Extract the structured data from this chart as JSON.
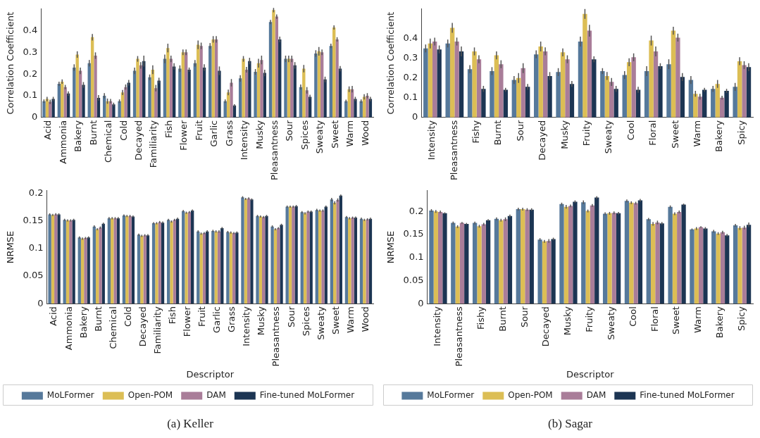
{
  "chart_data": [
    {
      "type": "bar",
      "ylabel": "Correlation Coefficient",
      "ylim": [
        0,
        0.5
      ],
      "yticks": [
        0,
        0.1,
        0.2,
        0.3,
        0.4
      ],
      "grid": false,
      "legend": false,
      "categories": [
        "Acid",
        "Ammonia",
        "Bakery",
        "Burnt",
        "Chemical",
        "Cold",
        "Decayed",
        "Familiarity",
        "Fish",
        "Flower",
        "Fruit",
        "Garlic",
        "Grass",
        "Intensity",
        "Musky",
        "Pleasantness",
        "Sour",
        "Spices",
        "Sweaty",
        "Sweet",
        "Warm",
        "Wood"
      ],
      "series": [
        {
          "color": "#56799b",
          "values": [
            0.075,
            0.155,
            0.23,
            0.25,
            0.1,
            0.075,
            0.215,
            0.185,
            0.27,
            0.225,
            0.25,
            0.33,
            0.075,
            0.18,
            0.21,
            0.44,
            0.27,
            0.14,
            0.295,
            0.33,
            0.075,
            0.075
          ],
          "errors": [
            0.008,
            0.01,
            0.015,
            0.015,
            0.012,
            0.008,
            0.015,
            0.013,
            0.02,
            0.015,
            0.015,
            0.013,
            0.008,
            0.015,
            0.013,
            0.01,
            0.015,
            0.012,
            0.015,
            0.01,
            0.007,
            0.008
          ]
        },
        {
          "color": "#dcbe55",
          "values": [
            0.085,
            0.165,
            0.29,
            0.37,
            0.075,
            0.115,
            0.27,
            0.22,
            0.32,
            0.3,
            0.335,
            0.36,
            0.115,
            0.27,
            0.25,
            0.495,
            0.27,
            0.225,
            0.305,
            0.415,
            0.13,
            0.095
          ],
          "errors": [
            0.01,
            0.01,
            0.015,
            0.015,
            0.012,
            0.012,
            0.013,
            0.02,
            0.02,
            0.013,
            0.02,
            0.015,
            0.013,
            0.013,
            0.02,
            0.01,
            0.015,
            0.017,
            0.02,
            0.01,
            0.013,
            0.012
          ]
        },
        {
          "color": "#a97d99",
          "values": [
            0.072,
            0.14,
            0.215,
            0.285,
            0.075,
            0.14,
            0.24,
            0.135,
            0.27,
            0.3,
            0.33,
            0.36,
            0.16,
            0.22,
            0.265,
            0.465,
            0.27,
            0.125,
            0.3,
            0.36,
            0.13,
            0.1
          ],
          "errors": [
            0.01,
            0.01,
            0.015,
            0.015,
            0.01,
            0.012,
            0.015,
            0.015,
            0.015,
            0.013,
            0.015,
            0.015,
            0.017,
            0.013,
            0.02,
            0.01,
            0.015,
            0.015,
            0.013,
            0.01,
            0.015,
            0.012
          ]
        },
        {
          "color": "#1c3553",
          "values": [
            0.085,
            0.11,
            0.15,
            0.09,
            0.06,
            0.16,
            0.26,
            0.17,
            0.235,
            0.22,
            0.23,
            0.215,
            0.055,
            0.26,
            0.205,
            0.36,
            0.24,
            0.095,
            0.175,
            0.225,
            0.085,
            0.085
          ],
          "errors": [
            0.01,
            0.01,
            0.013,
            0.013,
            0.008,
            0.013,
            0.025,
            0.013,
            0.015,
            0.01,
            0.015,
            0.02,
            0.006,
            0.015,
            0.015,
            0.013,
            0.015,
            0.01,
            0.013,
            0.012,
            0.01,
            0.01
          ]
        }
      ]
    },
    {
      "type": "bar",
      "ylabel": "Correlation Coefficient",
      "ylim": [
        0,
        0.55
      ],
      "yticks": [
        0,
        0.1,
        0.2,
        0.3,
        0.4
      ],
      "grid": false,
      "legend": false,
      "categories": [
        "Intensity",
        "Pleasantness",
        "Fishy",
        "Burnt",
        "Sour",
        "Decayed",
        "Musky",
        "Fruity",
        "Sweaty",
        "Cool",
        "Floral",
        "Sweet",
        "Warm",
        "Bakery",
        "Spicy"
      ],
      "series": [
        {
          "color": "#56799b",
          "values": [
            0.35,
            0.375,
            0.245,
            0.235,
            0.19,
            0.32,
            0.23,
            0.385,
            0.235,
            0.215,
            0.235,
            0.27,
            0.19,
            0.145,
            0.155
          ],
          "errors": [
            0.02,
            0.02,
            0.02,
            0.02,
            0.02,
            0.02,
            0.02,
            0.025,
            0.015,
            0.02,
            0.025,
            0.025,
            0.02,
            0.015,
            0.02
          ]
        },
        {
          "color": "#dcbe55",
          "values": [
            0.375,
            0.455,
            0.335,
            0.315,
            0.2,
            0.36,
            0.33,
            0.525,
            0.21,
            0.28,
            0.39,
            0.44,
            0.12,
            0.17,
            0.285
          ],
          "errors": [
            0.025,
            0.025,
            0.02,
            0.02,
            0.025,
            0.025,
            0.02,
            0.025,
            0.02,
            0.02,
            0.025,
            0.02,
            0.015,
            0.02,
            0.02
          ]
        },
        {
          "color": "#a97d99",
          "values": [
            0.385,
            0.385,
            0.295,
            0.27,
            0.25,
            0.335,
            0.295,
            0.44,
            0.18,
            0.305,
            0.335,
            0.405,
            0.105,
            0.1,
            0.265
          ],
          "errors": [
            0.02,
            0.02,
            0.02,
            0.02,
            0.025,
            0.02,
            0.02,
            0.03,
            0.02,
            0.02,
            0.025,
            0.02,
            0.015,
            0.01,
            0.02
          ]
        },
        {
          "color": "#1c3553",
          "values": [
            0.345,
            0.335,
            0.145,
            0.14,
            0.155,
            0.21,
            0.17,
            0.295,
            0.145,
            0.14,
            0.26,
            0.205,
            0.14,
            0.135,
            0.255
          ],
          "errors": [
            0.02,
            0.025,
            0.015,
            0.01,
            0.015,
            0.02,
            0.015,
            0.015,
            0.015,
            0.015,
            0.015,
            0.02,
            0.01,
            0.01,
            0.02
          ]
        }
      ]
    },
    {
      "type": "bar",
      "xlabel": "Descriptor",
      "ylabel": "NRMSE",
      "ylim": [
        0,
        0.205
      ],
      "yticks": [
        0,
        0.05,
        0.1,
        0.15,
        0.2
      ],
      "grid": false,
      "legend": "bottom",
      "annotations": [
        "(a) Keller"
      ],
      "categories": [
        "Acid",
        "Ammonia",
        "Bakery",
        "Burnt",
        "Chemical",
        "Cold",
        "Decayed",
        "Familiarity",
        "Fish",
        "Flower",
        "Fruit",
        "Garlic",
        "Grass",
        "Intensity",
        "Musky",
        "Pleasantness",
        "Sour",
        "Spices",
        "Sweaty",
        "Sweet",
        "Warm",
        "Wood"
      ],
      "series": [
        {
          "name": "MoLFormer",
          "color": "#56799b",
          "values": [
            0.162,
            0.152,
            0.12,
            0.14,
            0.155,
            0.16,
            0.125,
            0.146,
            0.152,
            0.168,
            0.131,
            0.132,
            0.13,
            0.193,
            0.159,
            0.14,
            0.176,
            0.166,
            0.17,
            0.189,
            0.157,
            0.154
          ],
          "errors": [
            0.002,
            0.002,
            0.002,
            0.002,
            0.002,
            0.002,
            0.002,
            0.002,
            0.002,
            0.002,
            0.002,
            0.002,
            0.002,
            0.002,
            0.002,
            0.002,
            0.002,
            0.002,
            0.002,
            0.003,
            0.002,
            0.002
          ]
        },
        {
          "name": "Open-POM",
          "color": "#dcbe55",
          "values": [
            0.161,
            0.151,
            0.118,
            0.135,
            0.155,
            0.159,
            0.123,
            0.146,
            0.149,
            0.165,
            0.127,
            0.131,
            0.129,
            0.19,
            0.158,
            0.135,
            0.176,
            0.164,
            0.169,
            0.183,
            0.155,
            0.152
          ],
          "errors": [
            0.002,
            0.002,
            0.002,
            0.002,
            0.002,
            0.002,
            0.002,
            0.002,
            0.002,
            0.002,
            0.002,
            0.002,
            0.002,
            0.002,
            0.002,
            0.002,
            0.002,
            0.002,
            0.002,
            0.003,
            0.002,
            0.002
          ]
        },
        {
          "name": "DAM",
          "color": "#a97d99",
          "values": [
            0.162,
            0.151,
            0.119,
            0.138,
            0.155,
            0.159,
            0.124,
            0.148,
            0.152,
            0.166,
            0.128,
            0.131,
            0.128,
            0.191,
            0.157,
            0.137,
            0.176,
            0.167,
            0.169,
            0.188,
            0.156,
            0.153
          ],
          "errors": [
            0.002,
            0.002,
            0.002,
            0.002,
            0.002,
            0.002,
            0.002,
            0.002,
            0.002,
            0.002,
            0.002,
            0.002,
            0.002,
            0.002,
            0.002,
            0.002,
            0.002,
            0.002,
            0.002,
            0.003,
            0.002,
            0.002
          ]
        },
        {
          "name": "Fine-tuned MoLFormer",
          "color": "#1c3553",
          "values": [
            0.162,
            0.152,
            0.12,
            0.145,
            0.155,
            0.158,
            0.124,
            0.147,
            0.154,
            0.169,
            0.131,
            0.137,
            0.129,
            0.189,
            0.159,
            0.143,
            0.177,
            0.167,
            0.176,
            0.196,
            0.156,
            0.154
          ],
          "errors": [
            0.002,
            0.002,
            0.002,
            0.002,
            0.002,
            0.002,
            0.002,
            0.002,
            0.002,
            0.002,
            0.002,
            0.002,
            0.002,
            0.002,
            0.002,
            0.002,
            0.002,
            0.002,
            0.002,
            0.002,
            0.002,
            0.002
          ]
        }
      ]
    },
    {
      "type": "bar",
      "xlabel": "Descriptor",
      "ylabel": "NRMSE",
      "ylim": [
        0,
        0.245
      ],
      "yticks": [
        0,
        0.05,
        0.1,
        0.15,
        0.2
      ],
      "grid": false,
      "legend": "bottom",
      "annotations": [
        "(b) Sagar"
      ],
      "categories": [
        "Intensity",
        "Pleasantness",
        "Fishy",
        "Burnt",
        "Sour",
        "Decayed",
        "Musky",
        "Fruity",
        "Sweaty",
        "Cool",
        "Floral",
        "Sweet",
        "Warm",
        "Bakery",
        "Spicy"
      ],
      "series": [
        {
          "name": "MoLFormer",
          "color": "#56799b",
          "values": [
            0.202,
            0.175,
            0.175,
            0.184,
            0.205,
            0.139,
            0.216,
            0.22,
            0.195,
            0.223,
            0.183,
            0.21,
            0.161,
            0.157,
            0.17
          ],
          "errors": [
            0.003,
            0.003,
            0.003,
            0.003,
            0.003,
            0.003,
            0.003,
            0.004,
            0.003,
            0.003,
            0.003,
            0.003,
            0.002,
            0.003,
            0.003
          ]
        },
        {
          "name": "Open-POM",
          "color": "#dcbe55",
          "values": [
            0.2,
            0.167,
            0.168,
            0.181,
            0.205,
            0.135,
            0.21,
            0.201,
            0.196,
            0.219,
            0.173,
            0.195,
            0.163,
            0.152,
            0.164
          ],
          "errors": [
            0.003,
            0.003,
            0.003,
            0.003,
            0.003,
            0.003,
            0.004,
            0.003,
            0.003,
            0.003,
            0.004,
            0.003,
            0.003,
            0.003,
            0.004
          ]
        },
        {
          "name": "DAM",
          "color": "#a97d99",
          "values": [
            0.199,
            0.175,
            0.172,
            0.183,
            0.204,
            0.136,
            0.212,
            0.213,
            0.197,
            0.218,
            0.176,
            0.199,
            0.166,
            0.155,
            0.165
          ],
          "errors": [
            0.003,
            0.002,
            0.003,
            0.004,
            0.003,
            0.004,
            0.003,
            0.003,
            0.003,
            0.003,
            0.004,
            0.003,
            0.002,
            0.003,
            0.004
          ]
        },
        {
          "name": "Fine-tuned MoLFormer",
          "color": "#1c3553",
          "values": [
            0.196,
            0.173,
            0.181,
            0.19,
            0.204,
            0.14,
            0.221,
            0.23,
            0.196,
            0.224,
            0.174,
            0.215,
            0.163,
            0.148,
            0.171
          ],
          "errors": [
            0.002,
            0.002,
            0.002,
            0.003,
            0.003,
            0.003,
            0.003,
            0.003,
            0.003,
            0.003,
            0.003,
            0.002,
            0.003,
            0.003,
            0.005
          ]
        }
      ]
    }
  ]
}
